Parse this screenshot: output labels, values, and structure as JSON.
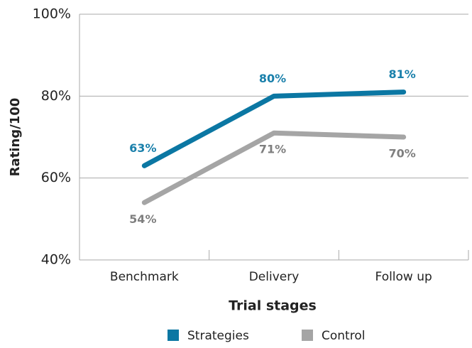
{
  "chart_data": {
    "type": "line",
    "xlabel": "Trial stages",
    "ylabel": "Rating/100",
    "categories": [
      "Benchmark",
      "Delivery",
      "Follow up"
    ],
    "series": [
      {
        "name": "Strategies",
        "color": "#0b77a3",
        "values": [
          63,
          80,
          81
        ],
        "value_labels": [
          "63%",
          "80%",
          "81%"
        ]
      },
      {
        "name": "Control",
        "color": "#a5a5a5",
        "values": [
          54,
          71,
          70
        ],
        "value_labels": [
          "54%",
          "71%",
          "70%"
        ]
      }
    ],
    "ylim": [
      40,
      100
    ],
    "yticks": [
      {
        "value": 40,
        "label": "40%"
      },
      {
        "value": 60,
        "label": "60%"
      },
      {
        "value": 80,
        "label": "80%"
      },
      {
        "value": 100,
        "label": "100%"
      }
    ],
    "grid": true,
    "legend": "bottom"
  }
}
